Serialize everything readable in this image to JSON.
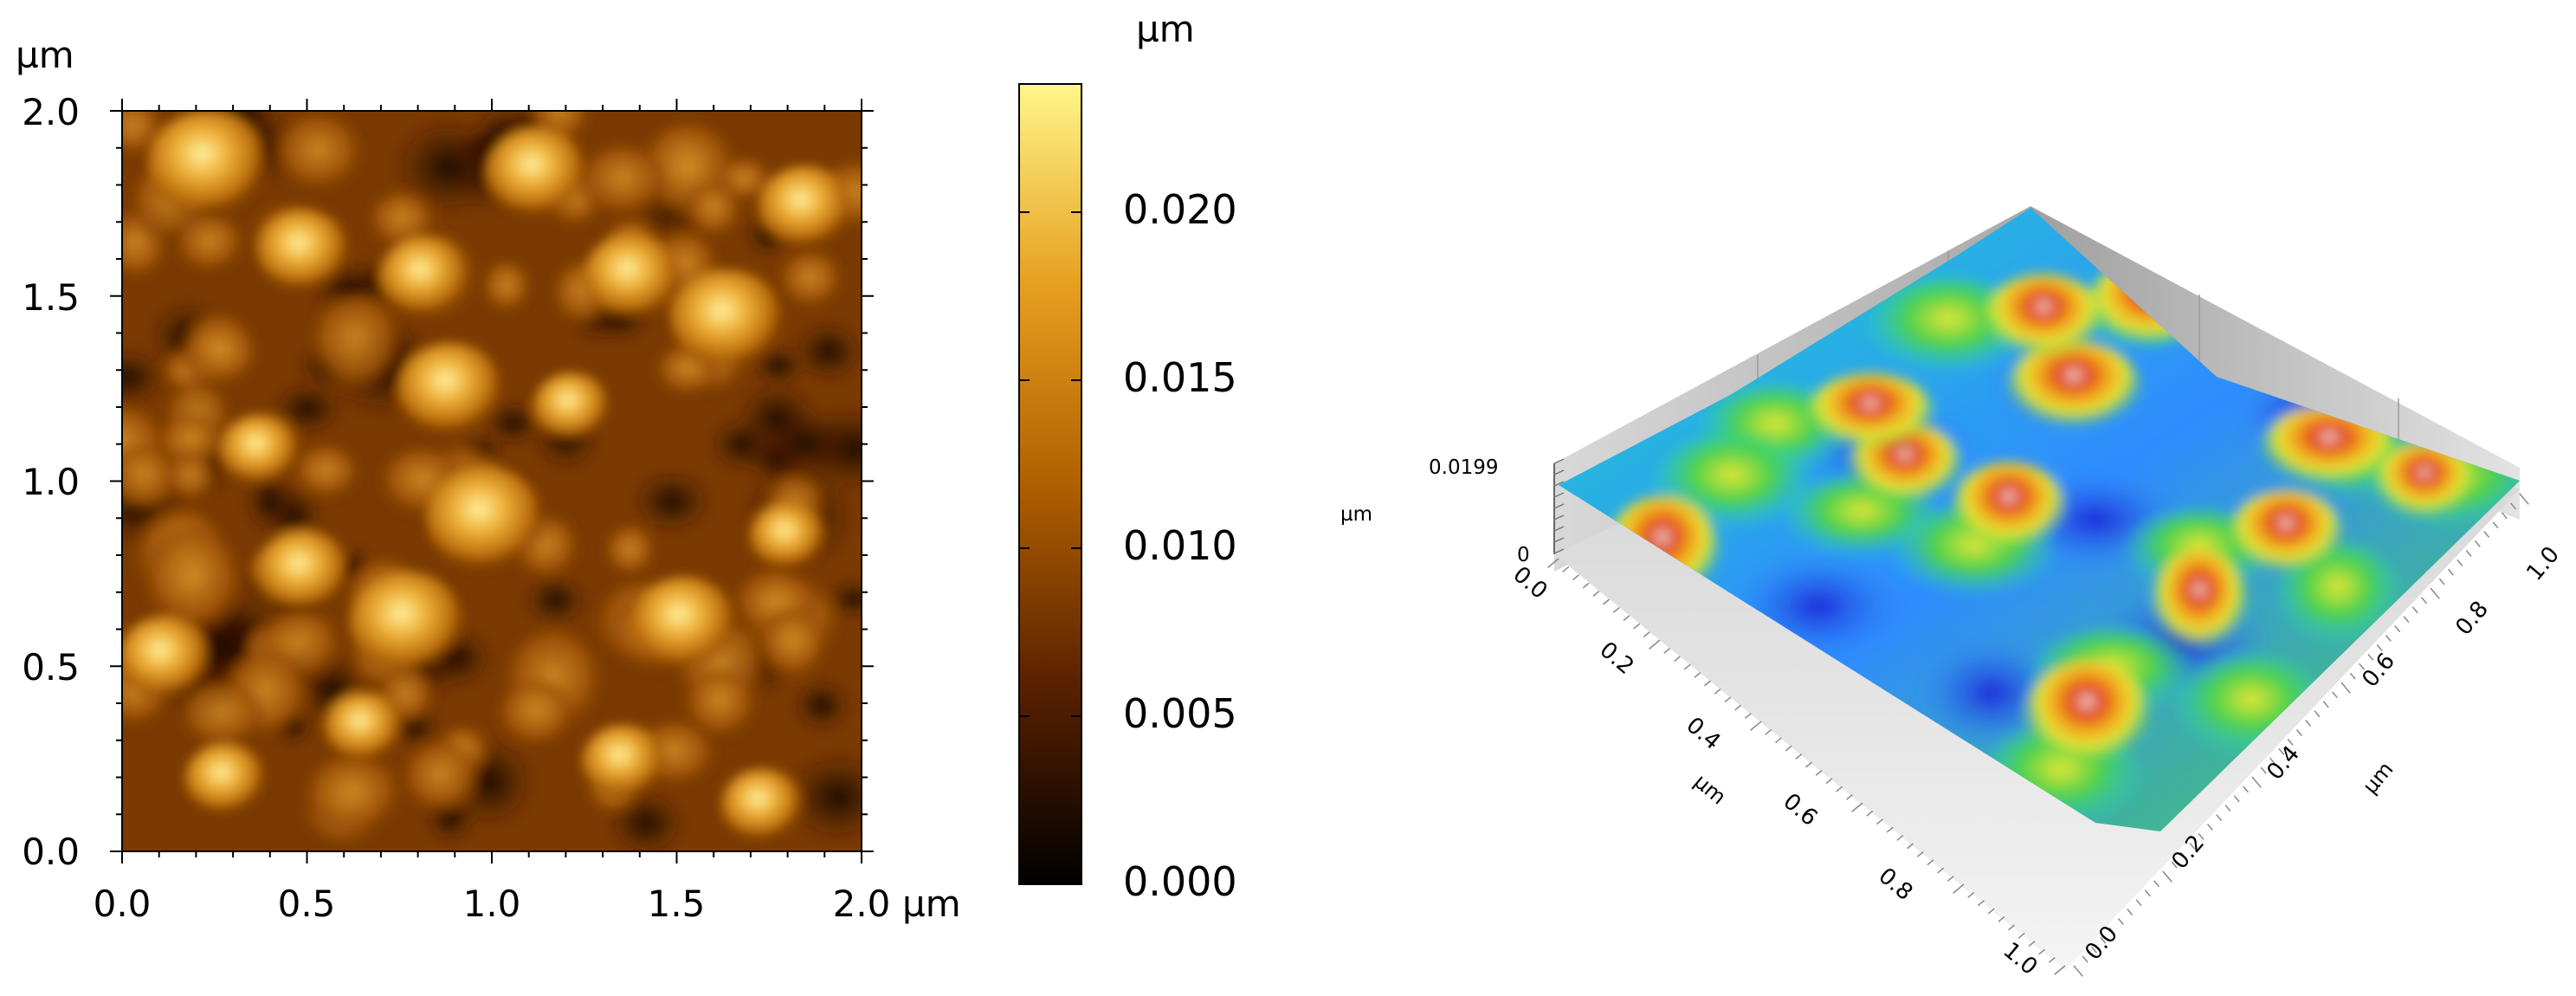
{
  "left_panel": {
    "x_axis": {
      "unit": "µm",
      "ticks": [
        "0.0",
        "0.5",
        "1.0",
        "1.5",
        "2.0"
      ]
    },
    "y_axis": {
      "unit": "µm",
      "ticks": [
        "0.0",
        "0.5",
        "1.0",
        "1.5",
        "2.0"
      ]
    },
    "colorbar": {
      "unit": "µm",
      "ticks": [
        "0.000",
        "0.005",
        "0.010",
        "0.015",
        "0.020"
      ],
      "colors": [
        "#000000",
        "#5a2100",
        "#b06000",
        "#e6a020",
        "#fff68a"
      ]
    }
  },
  "right_panel": {
    "z_label": "0.0199",
    "z_zero": "0",
    "z_unit": "µm",
    "left_axis": {
      "unit": "µm",
      "ticks": [
        "0.0",
        "0.2",
        "0.4",
        "0.6",
        "0.8",
        "1.0"
      ]
    },
    "right_axis": {
      "unit": "µm",
      "ticks": [
        "0.0",
        "0.2",
        "0.4",
        "0.6",
        "0.8",
        "1.0"
      ]
    },
    "surface_colors": [
      "#1a2ad8",
      "#2f8cff",
      "#21d6c7",
      "#4fd24a",
      "#e6e634",
      "#f2a51d",
      "#e04020",
      "#f0f0f0"
    ]
  }
}
